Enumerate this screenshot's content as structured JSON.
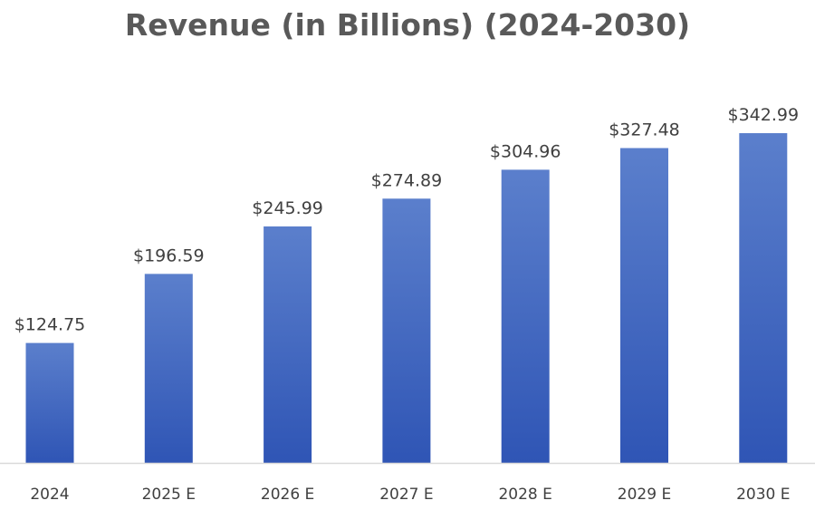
{
  "chart_data": {
    "type": "bar",
    "title": "Revenue (in Billions) (2024-2030)",
    "xlabel": "",
    "ylabel": "",
    "categories": [
      "2024",
      "2025 E",
      "2026 E",
      "2027 E",
      "2028 E",
      "2029 E",
      "2030 E"
    ],
    "values": [
      124.75,
      196.59,
      245.99,
      274.89,
      304.96,
      327.48,
      342.99
    ],
    "value_labels": [
      "$124.75",
      "$196.59",
      "$245.99",
      "$274.89",
      "$304.96",
      "$327.48",
      "$342.99"
    ],
    "ylim": [
      0,
      342.99
    ],
    "grid": false,
    "legend": "none",
    "colors": {
      "bar_top": "#5B7FCC",
      "bar_bottom": "#2F55B5",
      "axis": "#D9D9D9",
      "title": "#595959",
      "label": "#404040"
    }
  }
}
